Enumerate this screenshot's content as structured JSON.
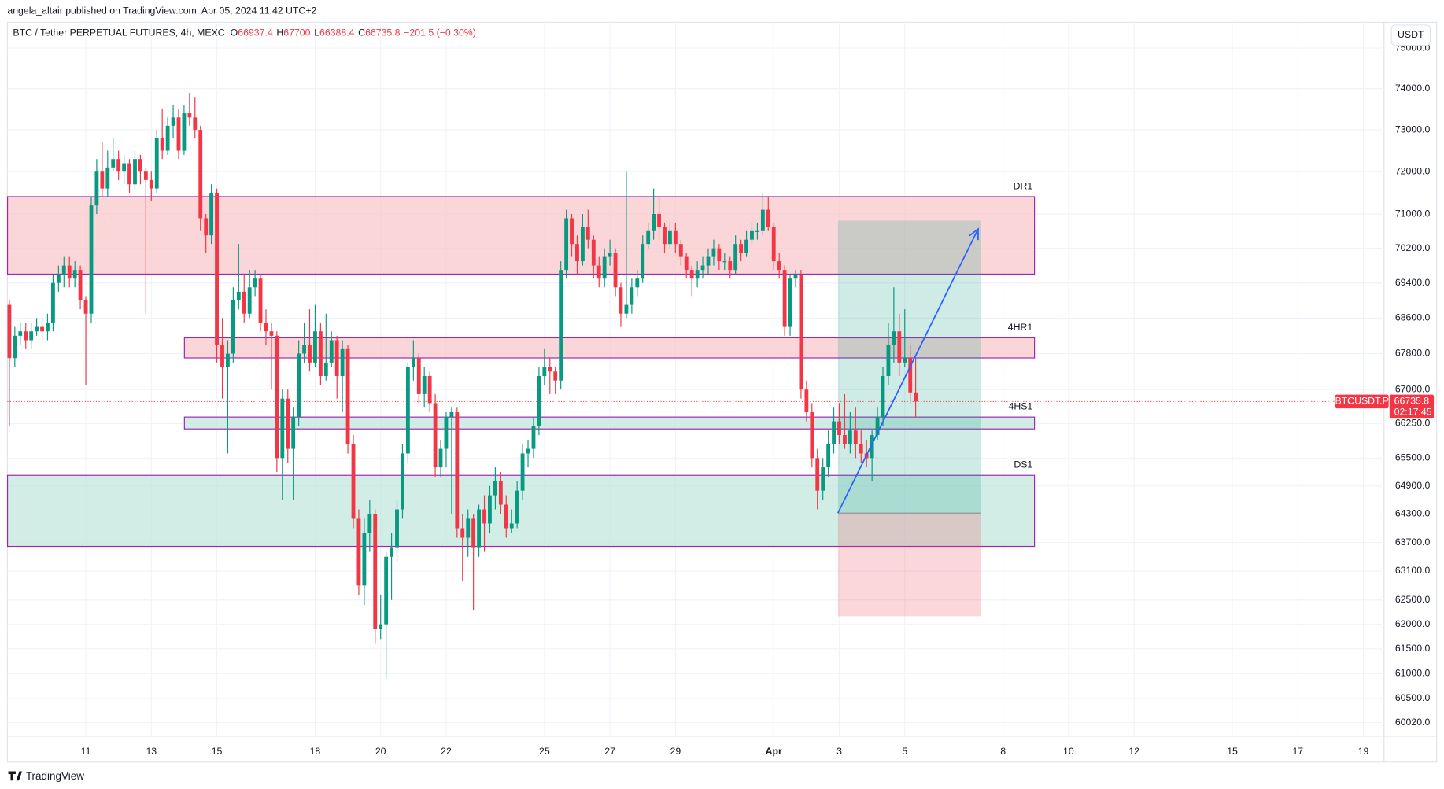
{
  "header": {
    "published": "angela_altair published on TradingView.com, Apr 05, 2024 11:42 UTC+2",
    "footer": "TradingView"
  },
  "chart_data": {
    "type": "candlestick",
    "title": "BTC / Tether PERPETUAL FUTURES, 4h, MEXC",
    "ohlc_labels": [
      "O",
      "H",
      "L",
      "C"
    ],
    "change": "−201.5 (−0.30%)",
    "currency": "USDT",
    "symbol_tag": "BTCUSDT.P",
    "countdown": "02:17:45",
    "up_color": "#089981",
    "down_color": "#f23645",
    "log_scale": true,
    "grid": true,
    "xlim": [
      8.606,
      50.63
    ],
    "ylim": [
      59750,
      75640
    ],
    "xticks": [
      11,
      13,
      15,
      18,
      20,
      22,
      25,
      27,
      29,
      {
        "value": 32,
        "label": "Apr"
      },
      {
        "value": 34,
        "label": "3"
      },
      {
        "value": 36,
        "label": "5"
      },
      {
        "value": 39,
        "label": "8"
      },
      {
        "value": 41,
        "label": "10"
      },
      {
        "value": 43,
        "label": "12"
      },
      {
        "value": 46,
        "label": "15"
      },
      {
        "value": 48,
        "label": "17"
      },
      {
        "value": 50,
        "label": "19"
      }
    ],
    "yticks": [
      {
        "value": 75000,
        "label": "75000.0"
      },
      {
        "value": 74000,
        "label": "74000.0"
      },
      {
        "value": 73000,
        "label": "73000.0"
      },
      {
        "value": 72000,
        "label": "72000.0"
      },
      {
        "value": 71000,
        "label": "71000.0"
      },
      {
        "value": 70200,
        "label": "70200.0"
      },
      {
        "value": 69400,
        "label": "69400.0"
      },
      {
        "value": 68600,
        "label": "68600.0"
      },
      {
        "value": 67800,
        "label": "67800.0"
      },
      {
        "value": 67000,
        "label": "67000.0"
      },
      {
        "value": 66250,
        "label": "66250.0"
      },
      {
        "value": 65500,
        "label": "65500.0"
      },
      {
        "value": 64900,
        "label": "64900.0"
      },
      {
        "value": 64300,
        "label": "64300.0"
      },
      {
        "value": 63700,
        "label": "63700.0"
      },
      {
        "value": 63100,
        "label": "63100.0"
      },
      {
        "value": 62500,
        "label": "62500.0"
      },
      {
        "value": 62000,
        "label": "62000.0"
      },
      {
        "value": 61500,
        "label": "61500.0"
      },
      {
        "value": 61000,
        "label": "61000.0"
      },
      {
        "value": 60500,
        "label": "60500.0"
      },
      {
        "value": 60020,
        "label": "60020.0"
      }
    ],
    "zones": [
      {
        "label": "DR1",
        "top": 71408,
        "bottom": 69604,
        "x": [
          8.61,
          39.96
        ],
        "color": "#f8c4c8"
      },
      {
        "label": "4HR1",
        "top": 68154,
        "bottom": 67703,
        "x": [
          14.01,
          39.96
        ],
        "color": "#f8c4c8"
      },
      {
        "label": "4HS1",
        "top": 66394,
        "bottom": 66135,
        "x": [
          14.01,
          39.96
        ],
        "color": "#bfe5dc"
      },
      {
        "label": "DS1",
        "top": 65128,
        "bottom": 63618,
        "x": [
          8.61,
          39.96
        ],
        "color": "#bfe5dc"
      }
    ],
    "position": {
      "x": [
        33.96,
        38.32
      ],
      "entry": 64322,
      "target": 70845,
      "stop": 62166
    },
    "arrow": {
      "x": [
        33.96,
        38.24
      ],
      "y": [
        64322,
        70650
      ],
      "color": "#2962ff"
    },
    "x": [
      8.667,
      8.833,
      9,
      9.167,
      9.333,
      9.5,
      9.667,
      9.833,
      10,
      10.167,
      10.333,
      10.5,
      10.667,
      10.833,
      11,
      11.167,
      11.333,
      11.5,
      11.667,
      11.833,
      12,
      12.167,
      12.333,
      12.5,
      12.667,
      12.833,
      13,
      13.167,
      13.333,
      13.5,
      13.667,
      13.833,
      14,
      14.167,
      14.333,
      14.5,
      14.667,
      14.833,
      15,
      15.167,
      15.333,
      15.5,
      15.667,
      15.833,
      16,
      16.167,
      16.333,
      16.5,
      16.667,
      16.833,
      17,
      17.167,
      17.333,
      17.5,
      17.667,
      17.833,
      18,
      18.167,
      18.333,
      18.5,
      18.667,
      18.833,
      19,
      19.167,
      19.333,
      19.5,
      19.667,
      19.833,
      20,
      20.167,
      20.333,
      20.5,
      20.667,
      20.833,
      21,
      21.167,
      21.333,
      21.5,
      21.667,
      21.833,
      22,
      22.167,
      22.333,
      22.5,
      22.667,
      22.833,
      23,
      23.167,
      23.333,
      23.5,
      23.667,
      23.833,
      24,
      24.167,
      24.333,
      24.5,
      24.667,
      24.833,
      25,
      25.167,
      25.333,
      25.5,
      25.667,
      25.833,
      26,
      26.167,
      26.333,
      26.5,
      26.667,
      26.833,
      27,
      27.167,
      27.333,
      27.5,
      27.667,
      27.833,
      28,
      28.167,
      28.333,
      28.5,
      28.667,
      28.833,
      29,
      29.167,
      29.333,
      29.5,
      29.667,
      29.833,
      30,
      30.167,
      30.333,
      30.5,
      30.667,
      30.833,
      31,
      31.167,
      31.333,
      31.5,
      31.667,
      31.833,
      32,
      32.167,
      32.333,
      32.5,
      32.667,
      32.833,
      33,
      33.167,
      33.333,
      33.5,
      33.667,
      33.833,
      34,
      34.167,
      34.333,
      34.5,
      34.667,
      34.833,
      35,
      35.167,
      35.333,
      35.5,
      35.667,
      35.833,
      36,
      36.167,
      36.333
    ],
    "ohlc": [
      [
        68900,
        69000,
        66200,
        67700
      ],
      [
        67700,
        68400,
        67500,
        68200
      ],
      [
        68200,
        68500,
        68000,
        68300
      ],
      [
        68300,
        68500,
        67900,
        68100
      ],
      [
        68100,
        68500,
        67900,
        68300
      ],
      [
        68300,
        68600,
        68200,
        68400
      ],
      [
        68400,
        68600,
        68100,
        68300
      ],
      [
        68300,
        68700,
        68100,
        68500
      ],
      [
        68500,
        69600,
        68300,
        69400
      ],
      [
        69400,
        69800,
        69200,
        69600
      ],
      [
        69600,
        70000,
        69300,
        69800
      ],
      [
        69800,
        70000,
        69300,
        69500
      ],
      [
        69500,
        69900,
        69300,
        69700
      ],
      [
        69700,
        69800,
        68800,
        69000
      ],
      [
        69000,
        69100,
        67100,
        68700
      ],
      [
        68700,
        71400,
        68500,
        71200
      ],
      [
        71200,
        72300,
        71000,
        72000
      ],
      [
        72000,
        72700,
        71400,
        71600
      ],
      [
        71600,
        72500,
        71400,
        72100
      ],
      [
        72100,
        72800,
        72000,
        72300
      ],
      [
        72300,
        72500,
        71800,
        72000
      ],
      [
        72000,
        72400,
        71700,
        72200
      ],
      [
        72200,
        72300,
        71500,
        71700
      ],
      [
        71700,
        72500,
        71600,
        72300
      ],
      [
        72300,
        72400,
        71700,
        72000
      ],
      [
        72000,
        72100,
        68700,
        71800
      ],
      [
        71800,
        72000,
        71300,
        71600
      ],
      [
        71600,
        73000,
        71500,
        72800
      ],
      [
        72800,
        73500,
        72300,
        72500
      ],
      [
        72500,
        73300,
        72400,
        73100
      ],
      [
        73100,
        73600,
        72800,
        73300
      ],
      [
        73300,
        73500,
        72300,
        72500
      ],
      [
        72500,
        73600,
        72400,
        73400
      ],
      [
        73400,
        73900,
        73100,
        73300
      ],
      [
        73300,
        73800,
        72800,
        73000
      ],
      [
        73000,
        73100,
        70600,
        70900
      ],
      [
        70900,
        71000,
        70100,
        70500
      ],
      [
        70500,
        71700,
        70300,
        71500
      ],
      [
        71500,
        71600,
        67600,
        68000
      ],
      [
        68000,
        68600,
        66800,
        67500
      ],
      [
        67500,
        68100,
        65600,
        67800
      ],
      [
        67800,
        69300,
        67600,
        69000
      ],
      [
        69000,
        70300,
        68800,
        69200
      ],
      [
        69200,
        69600,
        68500,
        68700
      ],
      [
        68700,
        69700,
        68600,
        69300
      ],
      [
        69300,
        69700,
        69100,
        69500
      ],
      [
        69500,
        69600,
        68300,
        68500
      ],
      [
        68500,
        68800,
        68000,
        68300
      ],
      [
        68300,
        68500,
        67000,
        68200
      ],
      [
        68200,
        68300,
        65200,
        65500
      ],
      [
        65500,
        67000,
        64600,
        66800
      ],
      [
        66800,
        67000,
        65400,
        65700
      ],
      [
        65700,
        66600,
        64600,
        66400
      ],
      [
        66400,
        68100,
        66200,
        67800
      ],
      [
        67800,
        68500,
        67600,
        68000
      ],
      [
        68000,
        68800,
        67400,
        67600
      ],
      [
        67600,
        68900,
        67500,
        68300
      ],
      [
        68300,
        68500,
        67100,
        67300
      ],
      [
        67300,
        68700,
        67200,
        67600
      ],
      [
        67600,
        68300,
        67500,
        68100
      ],
      [
        68100,
        68200,
        66800,
        67300
      ],
      [
        67300,
        68100,
        66500,
        67900
      ],
      [
        67900,
        68000,
        65600,
        65800
      ],
      [
        65800,
        66000,
        64000,
        64200
      ],
      [
        64200,
        64400,
        62600,
        62800
      ],
      [
        62800,
        64200,
        62400,
        63900
      ],
      [
        63900,
        64600,
        63500,
        64300
      ],
      [
        64300,
        64400,
        61600,
        61900
      ],
      [
        61900,
        62600,
        61700,
        62000
      ],
      [
        62000,
        63500,
        60900,
        63400
      ],
      [
        63400,
        63900,
        62500,
        63600
      ],
      [
        63600,
        64600,
        63300,
        64400
      ],
      [
        64400,
        65800,
        64200,
        65600
      ],
      [
        65600,
        67600,
        65400,
        67500
      ],
      [
        67500,
        68100,
        67200,
        67700
      ],
      [
        67700,
        67800,
        66700,
        66900
      ],
      [
        66900,
        67500,
        66600,
        67300
      ],
      [
        67300,
        67400,
        66500,
        66700
      ],
      [
        66700,
        66900,
        65100,
        65300
      ],
      [
        65300,
        65900,
        65100,
        65700
      ],
      [
        65700,
        66500,
        65300,
        66400
      ],
      [
        66400,
        66600,
        64300,
        66500
      ],
      [
        66500,
        66600,
        63800,
        64000
      ],
      [
        64000,
        64300,
        62900,
        63800
      ],
      [
        63800,
        64400,
        63400,
        64200
      ],
      [
        64200,
        64300,
        62300,
        63600
      ],
      [
        63600,
        64500,
        63400,
        64400
      ],
      [
        64400,
        64700,
        63500,
        64100
      ],
      [
        64100,
        64900,
        63900,
        64700
      ],
      [
        64700,
        65300,
        64400,
        65000
      ],
      [
        65000,
        65200,
        64300,
        64500
      ],
      [
        64500,
        64700,
        63800,
        64000
      ],
      [
        64000,
        64400,
        63900,
        64100
      ],
      [
        64100,
        65000,
        64000,
        64800
      ],
      [
        64800,
        65800,
        64600,
        65600
      ],
      [
        65600,
        65900,
        65300,
        65700
      ],
      [
        65700,
        66400,
        65500,
        66200
      ],
      [
        66200,
        67500,
        66000,
        67300
      ],
      [
        67300,
        67900,
        67100,
        67500
      ],
      [
        67500,
        67700,
        66900,
        67400
      ],
      [
        67400,
        67500,
        66900,
        67200
      ],
      [
        67200,
        69900,
        67000,
        69700
      ],
      [
        69700,
        71100,
        69500,
        70900
      ],
      [
        70900,
        71000,
        70000,
        70300
      ],
      [
        70300,
        70500,
        69600,
        69900
      ],
      [
        69900,
        71000,
        69800,
        70700
      ],
      [
        70700,
        71100,
        70200,
        70400
      ],
      [
        70400,
        70500,
        69500,
        69800
      ],
      [
        69800,
        70000,
        69300,
        69500
      ],
      [
        69500,
        70200,
        69300,
        70000
      ],
      [
        70000,
        70400,
        69800,
        70100
      ],
      [
        70100,
        70200,
        69100,
        69300
      ],
      [
        69300,
        69400,
        68400,
        68700
      ],
      [
        68700,
        72000,
        68600,
        68900
      ],
      [
        68900,
        69500,
        68700,
        69300
      ],
      [
        69300,
        69700,
        69100,
        69500
      ],
      [
        69500,
        70500,
        69400,
        70300
      ],
      [
        70300,
        70800,
        70200,
        70600
      ],
      [
        70600,
        71600,
        70400,
        71000
      ],
      [
        71000,
        71400,
        70400,
        70700
      ],
      [
        70700,
        70800,
        70100,
        70300
      ],
      [
        70300,
        70800,
        70200,
        70600
      ],
      [
        70600,
        70800,
        70100,
        70300
      ],
      [
        70300,
        70400,
        69800,
        70000
      ],
      [
        70000,
        70100,
        69500,
        69700
      ],
      [
        69700,
        69800,
        69100,
        69500
      ],
      [
        69500,
        69900,
        69300,
        69700
      ],
      [
        69700,
        70000,
        69500,
        69800
      ],
      [
        69800,
        70200,
        69600,
        70000
      ],
      [
        70000,
        70400,
        69800,
        70200
      ],
      [
        70200,
        70300,
        69700,
        69900
      ],
      [
        69900,
        70100,
        69700,
        69900
      ],
      [
        69900,
        70000,
        69500,
        69700
      ],
      [
        69700,
        70500,
        69600,
        70300
      ],
      [
        70300,
        70400,
        69900,
        70100
      ],
      [
        70100,
        70600,
        70000,
        70400
      ],
      [
        70400,
        70800,
        70300,
        70600
      ],
      [
        70600,
        70800,
        70400,
        70600
      ],
      [
        70600,
        71500,
        70500,
        71100
      ],
      [
        71100,
        71400,
        70600,
        70700
      ],
      [
        70700,
        70800,
        69700,
        69900
      ],
      [
        69900,
        70100,
        69500,
        69700
      ],
      [
        69700,
        69800,
        68200,
        68400
      ],
      [
        68400,
        69600,
        68200,
        69500
      ],
      [
        69500,
        69700,
        69300,
        69600
      ],
      [
        69600,
        69700,
        66800,
        67000
      ],
      [
        67000,
        67200,
        66300,
        66500
      ],
      [
        66500,
        66700,
        65300,
        65500
      ],
      [
        65500,
        65700,
        64400,
        64800
      ],
      [
        64800,
        65500,
        64600,
        65300
      ],
      [
        65300,
        66100,
        65100,
        65800
      ],
      [
        65800,
        66600,
        65600,
        66300
      ],
      [
        66300,
        66700,
        65800,
        66000
      ],
      [
        66000,
        66900,
        65700,
        65800
      ],
      [
        65800,
        66500,
        65600,
        66100
      ],
      [
        66100,
        66600,
        65500,
        65800
      ],
      [
        65800,
        66100,
        65400,
        65600
      ],
      [
        65600,
        65900,
        65300,
        65500
      ],
      [
        65500,
        66100,
        65000,
        66000
      ],
      [
        66000,
        66600,
        65900,
        66400
      ],
      [
        66400,
        67500,
        66200,
        67300
      ],
      [
        67300,
        68500,
        67100,
        68000
      ],
      [
        68000,
        69300,
        67600,
        68300
      ],
      [
        68300,
        68700,
        67300,
        67600
      ],
      [
        67600,
        68800,
        67500,
        67700
      ],
      [
        67700,
        68000,
        66700,
        66937.4
      ],
      [
        66937.4,
        67700,
        66388.4,
        66735.8
      ]
    ]
  }
}
